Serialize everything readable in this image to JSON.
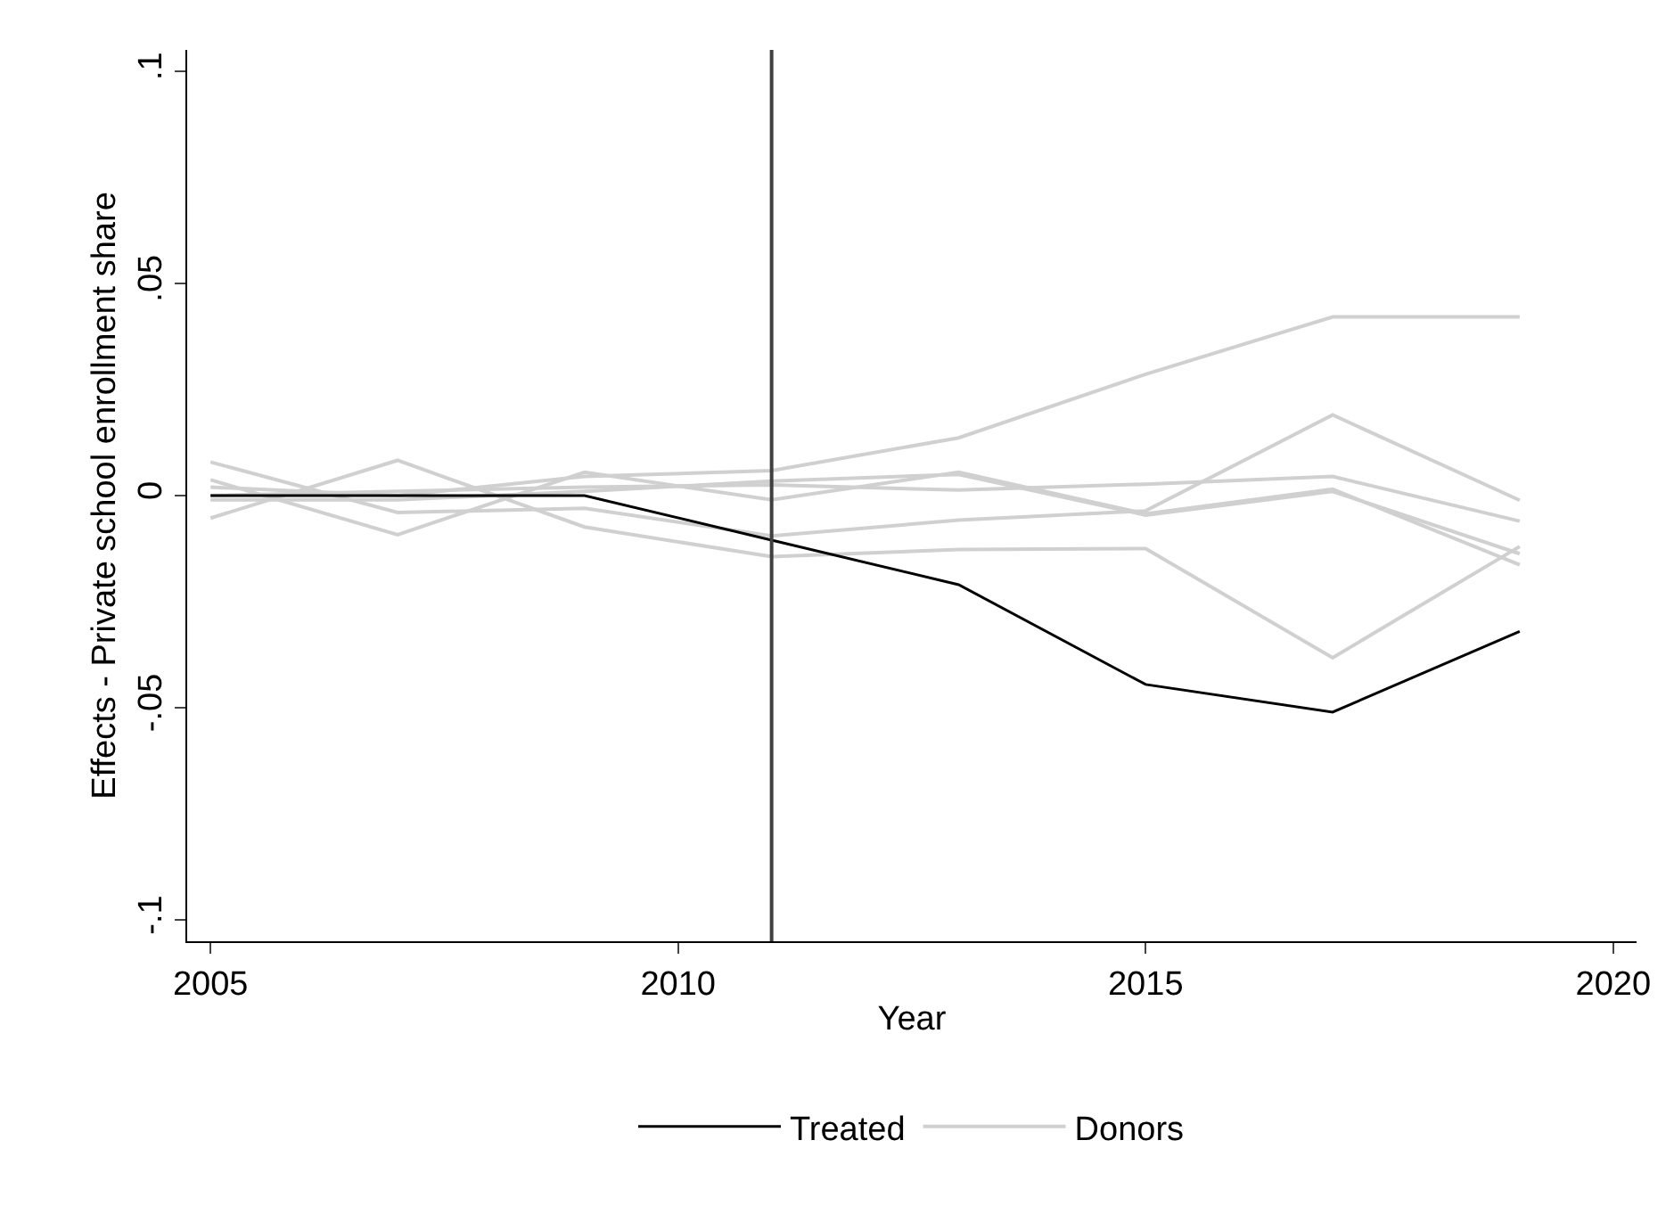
{
  "chart_data": {
    "type": "line",
    "xlabel": "Year",
    "ylabel": "Effects - Private school enrollment share",
    "x": [
      2005,
      2007,
      2009,
      2011,
      2013,
      2015,
      2017,
      2019
    ],
    "series": [
      {
        "name": "Treated",
        "color": "#000000",
        "values": [
          0,
          0,
          0,
          -0.0105,
          -0.021,
          -0.0445,
          -0.051,
          -0.032
        ]
      },
      {
        "name": "Donors",
        "color": "#d0d0d0",
        "values": [
          0.002,
          0.0,
          0.0045,
          0.0059,
          0.0136,
          0.0286,
          0.0421,
          0.0421
        ]
      },
      {
        "color": "#d0d0d0",
        "values": [
          -0.0053,
          0.0083,
          -0.0074,
          -0.0144,
          -0.0127,
          -0.0125,
          -0.0382,
          -0.012
        ]
      },
      {
        "color": "#d0d0d0",
        "values": [
          0.0079,
          -0.004,
          -0.003,
          -0.0095,
          -0.0058,
          -0.0036,
          0.019,
          -0.0011
        ]
      },
      {
        "color": "#d0d0d0",
        "values": [
          0.0037,
          -0.0092,
          0.0055,
          -0.001,
          0.0055,
          -0.0043,
          0.0015,
          -0.0163
        ]
      },
      {
        "color": "#d0d0d0",
        "values": [
          -0.001,
          -0.001,
          0.001,
          0.0034,
          0.005,
          -0.0046,
          0.001,
          -0.0137
        ]
      },
      {
        "color": "#d0d0d0",
        "values": [
          0.0,
          0.001,
          0.002,
          0.0025,
          0.0013,
          0.0027,
          0.0045,
          -0.006
        ]
      }
    ],
    "xlim": [
      2004.75,
      2020.25
    ],
    "ylim": [
      -0.105,
      0.105
    ],
    "xticks": [
      2005,
      2010,
      2015,
      2020
    ],
    "yticks": [
      {
        "value": 0.1,
        "label": ".1"
      },
      {
        "value": 0.05,
        "label": ".05"
      },
      0,
      {
        "value": -0.05,
        "label": "-.05"
      },
      {
        "value": -0.1,
        "label": "-.1"
      }
    ],
    "ref_lines": [
      {
        "axis": "x",
        "value": 2011,
        "label": null,
        "color": "#404040"
      }
    ],
    "legend": "bottom",
    "marker": "none",
    "line_style": "solid"
  }
}
